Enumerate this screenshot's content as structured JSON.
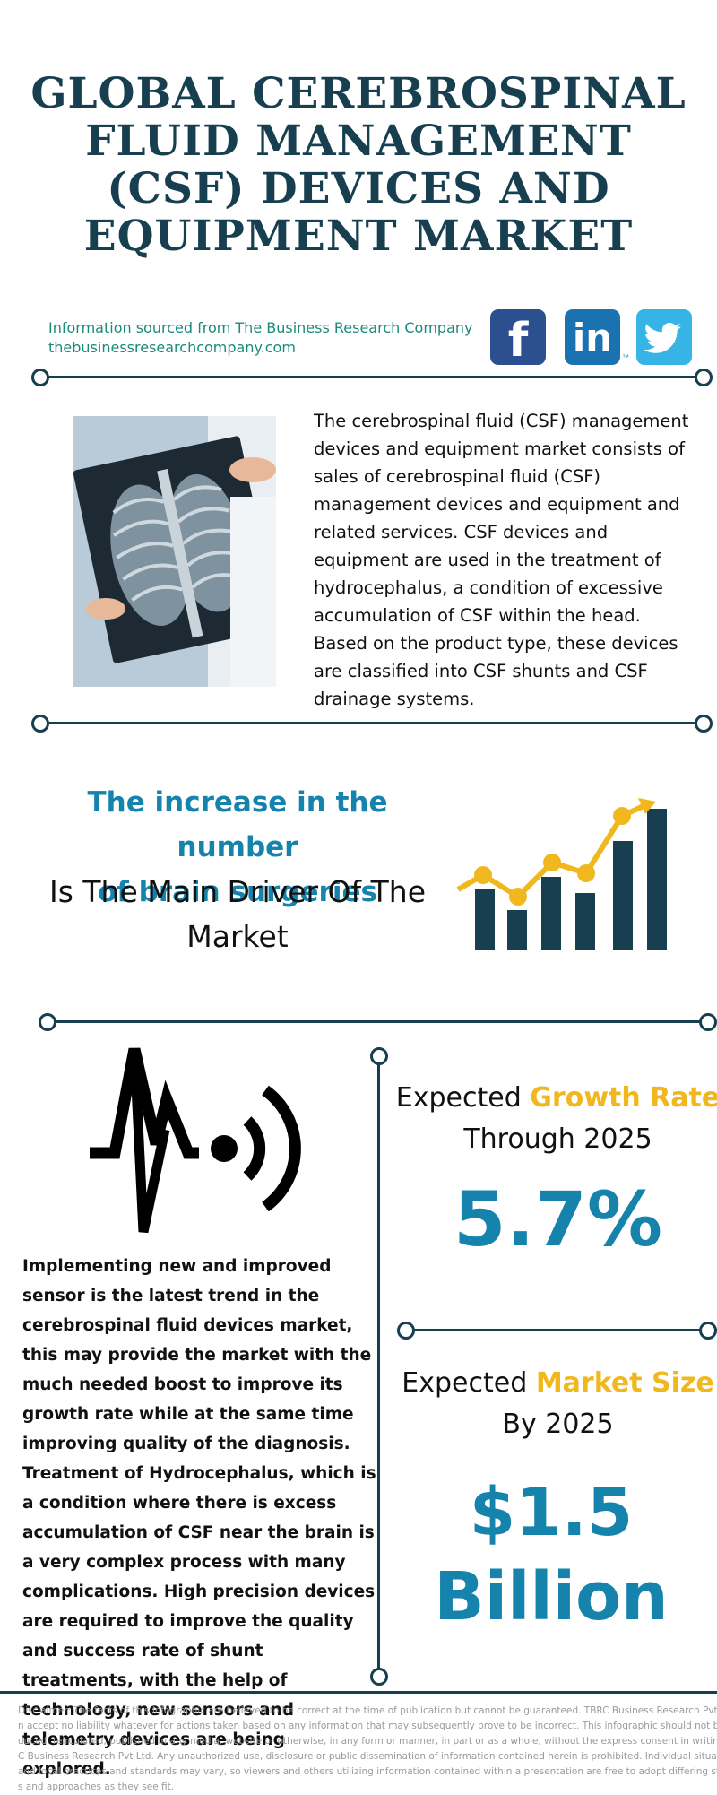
{
  "title": {
    "lines": [
      "GLOBAL CEREBROSPINAL",
      "FLUID MANAGEMENT",
      "(CSF) DEVICES AND",
      "EQUIPMENT MARKET"
    ]
  },
  "source": {
    "line1": "Information sourced from The Business Research Company",
    "line2": "thebusinessresearchcompany.com"
  },
  "social": {
    "facebook_glyph": "f",
    "linkedin_glyph": "in",
    "linkedin_tm": "™",
    "icons": [
      "facebook-icon",
      "linkedin-icon",
      "twitter-icon"
    ]
  },
  "intro": {
    "image": "xray-photo",
    "text": "The cerebrospinal fluid (CSF) management devices and equipment market consists of sales of cerebrospinal fluid (CSF) management devices and equipment and related services. CSF devices and equipment are used in the treatment of hydrocephalus, a condition of excessive accumulation of CSF within the head. Based on the product type, these devices are classified into CSF shunts and CSF drainage systems."
  },
  "driver": {
    "highlight_line1": "The increase in the number",
    "highlight_line2": "of brain surgeries",
    "rest_line1": "Is The Main Driver Of The",
    "rest_line2": "Market",
    "icon": "growth-chart-icon"
  },
  "trend": {
    "icon": "sensor-pulse-icon",
    "text": "Implementing new and improved sensor is the latest trend in the cerebrospinal fluid devices market, this may provide the market with the much needed boost to improve its growth rate while at the same time improving quality of the diagnosis. Treatment of Hydrocephalus, which is a condition where there is excess accumulation of CSF near the brain is a very complex process with many complications. High precision devices are required to improve the quality and success rate of shunt treatments, with the help of technology, new sensors and telemetry devices are being explored."
  },
  "growth": {
    "prefix": "Expected",
    "accent": "Growth Rate",
    "line2": "Through 2025",
    "value": "5.7%"
  },
  "market_size": {
    "prefix": "Expected",
    "accent": "Market Size",
    "line2": "By 2025",
    "value_line1": "$1.5",
    "value_line2": "Billion"
  },
  "colors": {
    "navy": "#173f4f",
    "teal_text": "#1a8a7a",
    "blue_accent": "#1683ad",
    "gold_accent": "#f0b81e",
    "facebook": "#2c4f8f",
    "linkedin": "#1a73b0",
    "twitter": "#36b4e5"
  },
  "disclaimer": {
    "lines": [
      "Disclaimer: The facts of this infographic are believed to be correct at the time of publication but cannot be guaranteed. TBRC Business Research Pvt Ltd c",
      "n accept no liability whatever for actions taken based on any information that may subsequently prove to be incorrect. This infographic should not be repr",
      "duced, reirculated, published in any media, website or otherwise, in any form or manner, in part or as a whole, without the express consent in writing of TB",
      "C Business Research Pvt Ltd. Any unauthorized use, disclosure or public dissemination of information contained herein is prohibited. Individual situations",
      "and local practices and standards may vary, so viewers and others utilizing information contained within a presentation are free to adopt differing standar",
      "s and approaches as they see fit."
    ]
  }
}
